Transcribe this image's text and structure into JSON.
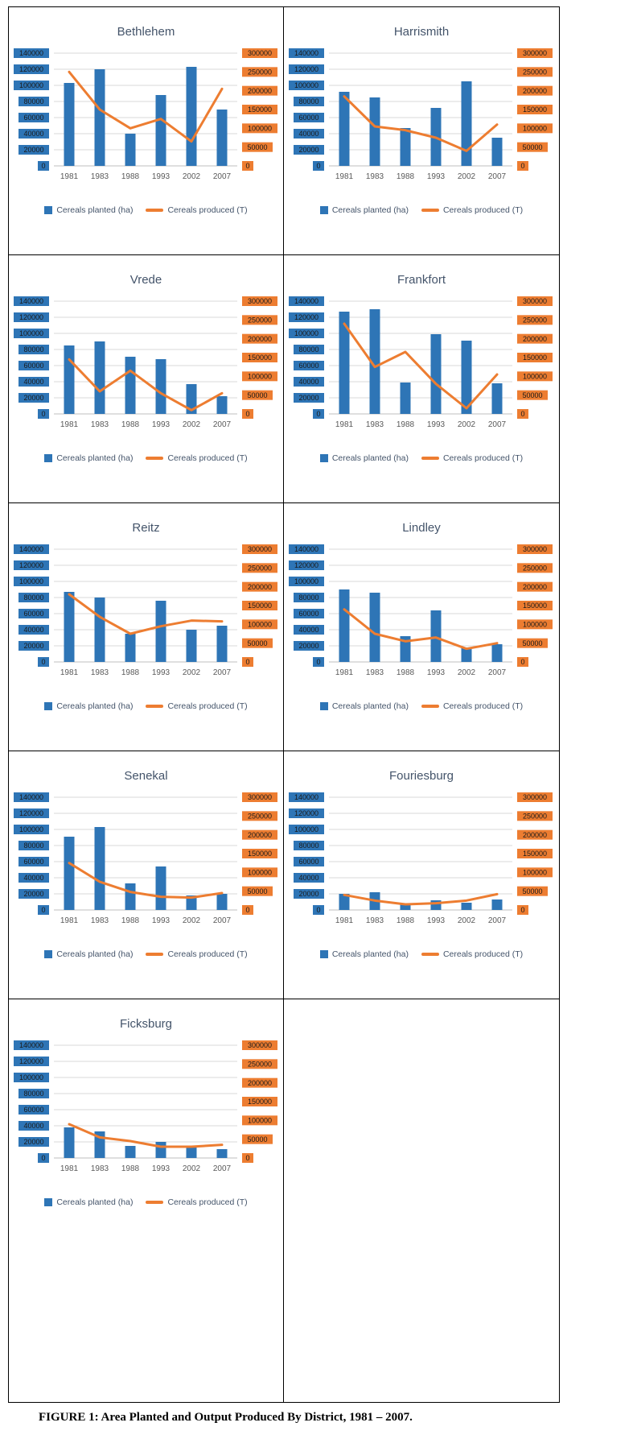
{
  "page": {
    "caption_prefix": "FIGURE 1",
    "caption_rest": ": Area Planted and Output Produced By District, 1981 – 2007."
  },
  "chart_data": {
    "type": "bar",
    "subtype": "bar+line dual-axis small multiples",
    "categories": [
      "1981",
      "1983",
      "1988",
      "1993",
      "2002",
      "2007"
    ],
    "left_axis": {
      "applies_to": "Cereals planted (ha)",
      "min": 0,
      "max": 140000,
      "step": 20000,
      "tick_labels": [
        "0",
        "20000",
        "40000",
        "60000",
        "80000",
        "100000",
        "120000",
        "140000"
      ]
    },
    "right_axis": {
      "applies_to": "Cereals produced (T)",
      "min": 0,
      "max": 300000,
      "step": 50000,
      "tick_labels": [
        "0",
        "50000",
        "100000",
        "150000",
        "200000",
        "250000",
        "300000"
      ]
    },
    "grid": true,
    "legend_position": "bottom",
    "legend": [
      {
        "label": "Cereals planted (ha)",
        "swatch": "bar",
        "color": "#2E75B6"
      },
      {
        "label": "Cereals produced (T)",
        "swatch": "line",
        "color": "#ED7D31"
      }
    ],
    "colors": {
      "bar": "#2E75B6",
      "line": "#ED7D31",
      "left_tick_bg": "#2E75B6",
      "right_tick_bg": "#ED7D31",
      "gridline": "#D9D9D9",
      "axis_line": "#BFBFBF",
      "tick_text": "#1a1a1a",
      "x_tick_text": "#595959",
      "title_text": "#44546A"
    },
    "charts": [
      {
        "title": "Bethlehem",
        "planted": [
          103000,
          120000,
          40000,
          88000,
          123000,
          70000
        ],
        "produced": [
          250000,
          150000,
          100000,
          125000,
          65000,
          205000
        ]
      },
      {
        "title": "Harrismith",
        "planted": [
          92000,
          85000,
          47000,
          72000,
          105000,
          35000
        ],
        "produced": [
          185000,
          105000,
          95000,
          75000,
          40000,
          110000
        ]
      },
      {
        "title": "Vrede",
        "planted": [
          85000,
          90000,
          71000,
          68000,
          37000,
          22000
        ],
        "produced": [
          145000,
          60000,
          115000,
          55000,
          10000,
          55000
        ]
      },
      {
        "title": "Frankfort",
        "planted": [
          127000,
          130000,
          39000,
          99000,
          91000,
          38000
        ],
        "produced": [
          240000,
          125000,
          165000,
          80000,
          15000,
          105000
        ]
      },
      {
        "title": "Reitz",
        "planted": [
          87000,
          80000,
          35000,
          76000,
          40000,
          45000
        ],
        "produced": [
          180000,
          120000,
          75000,
          95000,
          110000,
          108000
        ]
      },
      {
        "title": "Lindley",
        "planted": [
          90000,
          86000,
          32000,
          64000,
          18000,
          22000
        ],
        "produced": [
          140000,
          75000,
          55000,
          65000,
          35000,
          50000
        ]
      },
      {
        "title": "Senekal",
        "planted": [
          91000,
          103000,
          33000,
          54000,
          18000,
          20000
        ],
        "produced": [
          125000,
          75000,
          48000,
          35000,
          33000,
          45000
        ]
      },
      {
        "title": "Fouriesburg",
        "planted": [
          20000,
          22000,
          8000,
          12000,
          9000,
          13000
        ],
        "produced": [
          40000,
          25000,
          15000,
          18000,
          25000,
          42000
        ]
      },
      {
        "title": "Ficksburg",
        "planted": [
          38000,
          33000,
          15000,
          20000,
          13000,
          11000
        ],
        "produced": [
          90000,
          55000,
          45000,
          30000,
          30000,
          35000
        ]
      }
    ]
  }
}
